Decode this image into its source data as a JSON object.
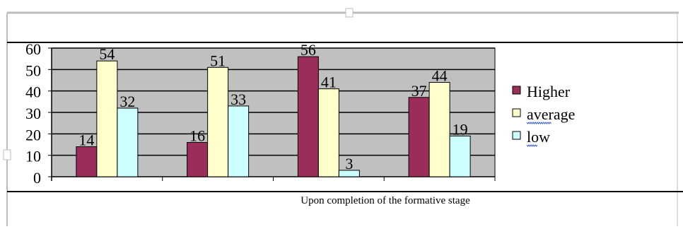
{
  "chart_data": {
    "type": "bar",
    "categories": [
      "",
      "",
      "",
      ""
    ],
    "series": [
      {
        "name": "Higher",
        "values": [
          14,
          16,
          56,
          37
        ],
        "color": "#9B2D5A"
      },
      {
        "name": "average",
        "values": [
          54,
          51,
          41,
          44
        ],
        "color": "#FFFFCC"
      },
      {
        "name": "low",
        "values": [
          32,
          33,
          3,
          19
        ],
        "color": "#CCFFFF"
      }
    ],
    "xlabel": "Upon completion of the formative stage",
    "ylim": [
      0,
      60
    ],
    "yticks": [
      0,
      10,
      20,
      30,
      40,
      50,
      60
    ],
    "grid": true,
    "plot_background": "#C0C0C0",
    "legend_position": "right",
    "data_labels": true
  }
}
